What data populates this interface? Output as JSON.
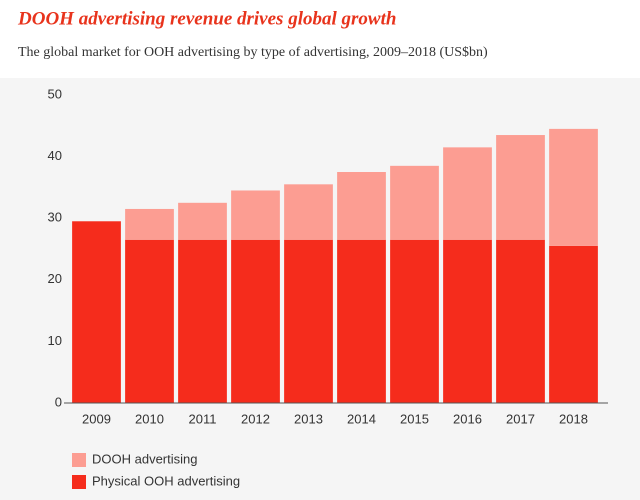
{
  "chart_data": {
    "type": "stacked-bar",
    "title": "DOOH advertising revenue drives global growth",
    "subtitle": "The global market for OOH advertising by type of advertising, 2009–2018 (US$bn)",
    "categories": [
      "2009",
      "2010",
      "2011",
      "2012",
      "2013",
      "2014",
      "2015",
      "2016",
      "2017",
      "2018"
    ],
    "series": [
      {
        "name": "DOOH advertising",
        "color": "#fc9d92",
        "values": [
          0,
          5,
          6,
          8,
          9,
          11,
          12,
          15,
          17,
          19
        ]
      },
      {
        "name": "Physical OOH advertising",
        "color": "#f52c1c",
        "values": [
          29.5,
          26.5,
          26.5,
          26.5,
          26.5,
          26.5,
          26.5,
          26.5,
          26.5,
          25.5
        ]
      }
    ],
    "ylim": [
      0,
      50
    ],
    "yticks": [
      0,
      10,
      20,
      30,
      40,
      50
    ],
    "grid": false
  }
}
